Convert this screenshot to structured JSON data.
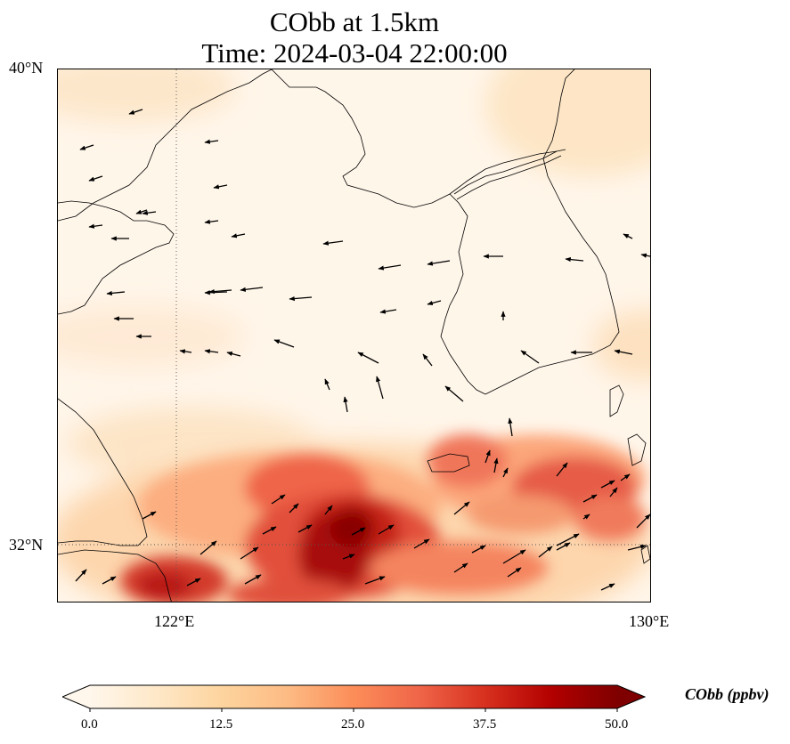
{
  "title": {
    "line1": "CObb at 1.5km",
    "line2": "Time: 2024-03-04 22:00:00"
  },
  "axes": {
    "lat_labels": [
      "40°N",
      "32°N"
    ],
    "lon_labels": [
      "122°E",
      "130°E"
    ],
    "extent": {
      "lon_min": 120,
      "lon_max": 130,
      "lat_min": 31,
      "lat_max": 40
    },
    "gridlines": {
      "lon": [
        122
      ],
      "lat": [
        32
      ],
      "style": "dotted"
    }
  },
  "colorbar": {
    "label": "CObb (ppbv)",
    "ticks": [
      "0.0",
      "12.5",
      "25.0",
      "37.5",
      "50.0"
    ],
    "range": [
      0,
      50
    ],
    "colormap": "OrRd",
    "extend": "both",
    "colors": [
      "#fff7ec",
      "#fee8c8",
      "#fdd49e",
      "#fdbb84",
      "#fc8d59",
      "#ef6548",
      "#d7301f",
      "#b30000",
      "#7f0000"
    ]
  },
  "map_data": {
    "field": "CObb",
    "units": "ppbv",
    "level": "1.5km",
    "high_concentration_centers": [
      {
        "lon": 125.0,
        "lat": 32.0,
        "value": 48
      },
      {
        "lon": 125.3,
        "lat": 31.8,
        "value": 45
      },
      {
        "lon": 121.7,
        "lat": 31.3,
        "value": 38
      },
      {
        "lon": 126.8,
        "lat": 33.5,
        "value": 32
      },
      {
        "lon": 128.8,
        "lat": 33.3,
        "value": 28
      },
      {
        "lon": 123.5,
        "lat": 33.2,
        "value": 30
      }
    ]
  }
}
